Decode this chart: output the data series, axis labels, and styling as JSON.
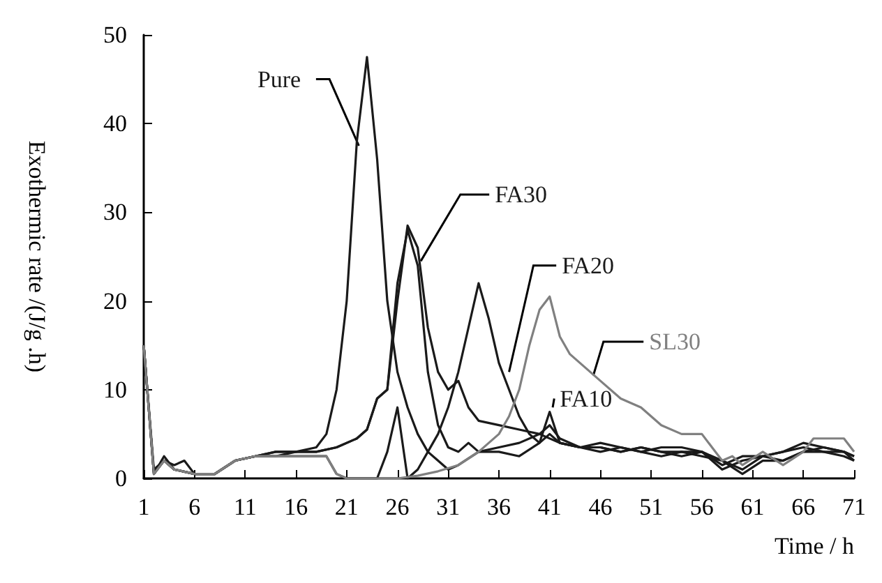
{
  "chart_data": {
    "type": "line",
    "xlabel": "Time / h",
    "ylabel": "Exothermic rate /(J/g .h)",
    "xlim": [
      1,
      71
    ],
    "xticks": [
      1,
      6,
      11,
      16,
      21,
      26,
      31,
      36,
      41,
      46,
      51,
      56,
      61,
      66,
      71
    ],
    "ylim": [
      0,
      50
    ],
    "yticks": [
      0,
      10,
      20,
      30,
      40,
      50
    ],
    "grid": false,
    "legend": false,
    "marker": "none",
    "line_style": "solid",
    "series": [
      {
        "name": "Pure",
        "color": "#1a1a1a",
        "x": [
          1,
          2,
          3,
          4,
          5,
          6,
          8,
          10,
          12,
          14,
          16,
          18,
          19,
          20,
          21,
          22,
          23,
          24,
          25,
          26,
          27,
          28,
          29,
          30,
          31,
          32,
          34,
          36,
          38,
          40,
          42,
          44,
          46,
          48,
          50,
          52,
          54,
          56,
          58,
          60,
          62,
          64,
          66,
          68,
          70,
          71
        ],
        "values": [
          15,
          1,
          2,
          1.5,
          2,
          0.5,
          0.5,
          2,
          2.5,
          2.5,
          3,
          3.5,
          5,
          10,
          20,
          38,
          47.5,
          36,
          20,
          12,
          8,
          5,
          3,
          2,
          1,
          1.5,
          3,
          3.5,
          4,
          5,
          4,
          3.5,
          3.5,
          3,
          3.5,
          3,
          3,
          3,
          1.5,
          2.5,
          2.5,
          3,
          3.5,
          3,
          2.5,
          2
        ]
      },
      {
        "name": "FA30",
        "color": "#1a1a1a",
        "x": [
          1,
          2,
          3,
          4,
          6,
          8,
          10,
          12,
          14,
          16,
          18,
          20,
          22,
          23,
          24,
          25,
          26,
          27,
          28,
          29,
          30,
          31,
          32,
          33,
          34,
          36,
          38,
          40,
          41,
          42,
          44,
          46,
          48,
          50,
          52,
          54,
          56,
          58,
          60,
          62,
          64,
          66,
          68,
          70,
          71
        ],
        "values": [
          15,
          0.5,
          2,
          1,
          0.5,
          0.5,
          2,
          2.5,
          3,
          3,
          3,
          3.5,
          4.5,
          5.5,
          9,
          10,
          20,
          28.5,
          26,
          17,
          12,
          10,
          11,
          8,
          6.5,
          6,
          5.5,
          5,
          6,
          4.5,
          3.5,
          4,
          3.5,
          3,
          3.5,
          3.5,
          3,
          2,
          0.5,
          2,
          2,
          3,
          3,
          3,
          2
        ]
      },
      {
        "name": "FA10",
        "color": "#1a1a1a",
        "x": [
          1,
          2,
          3,
          4,
          6,
          8,
          10,
          12,
          14,
          16,
          18,
          20,
          22,
          23,
          24,
          25,
          26,
          27,
          28,
          29,
          30,
          31,
          32,
          33,
          34,
          35,
          36,
          38,
          40,
          41,
          42,
          44,
          46,
          48,
          50,
          52,
          54,
          56,
          58,
          60,
          62,
          64,
          66,
          68,
          70,
          71
        ],
        "values": [
          15,
          0.5,
          2.5,
          1,
          0.5,
          0.5,
          2,
          2.5,
          3,
          3,
          3,
          3.5,
          4.5,
          5.5,
          9,
          10,
          22,
          28,
          24,
          12,
          6,
          3.5,
          3,
          4,
          3,
          3,
          3,
          2.5,
          4,
          7.5,
          4,
          3.5,
          3.5,
          3,
          3.5,
          3,
          2.5,
          3,
          1,
          2,
          2.5,
          3,
          4,
          3.5,
          3,
          2.5
        ]
      },
      {
        "name": "FA20",
        "color": "#1a1a1a",
        "x": [
          1,
          2,
          3,
          4,
          6,
          8,
          10,
          12,
          14,
          16,
          18,
          19,
          20,
          21,
          22,
          24,
          25,
          26,
          26.5,
          27,
          28,
          29,
          30,
          31,
          32,
          33,
          34,
          35,
          36,
          37,
          38,
          39,
          40,
          41,
          42,
          44,
          46,
          48,
          50,
          52,
          54,
          56,
          58,
          60,
          62,
          64,
          66,
          68,
          70,
          71
        ],
        "values": [
          15,
          0.5,
          2,
          1,
          0.5,
          0.5,
          2,
          2.5,
          2.5,
          2.5,
          2.5,
          2.5,
          0.5,
          0,
          0,
          0,
          3,
          8,
          4,
          0,
          1,
          3,
          5,
          8,
          12,
          17,
          22,
          18,
          13,
          10,
          7,
          5,
          4,
          5,
          4,
          3.5,
          3,
          3.5,
          3,
          2.5,
          3,
          2.5,
          2,
          1,
          2.5,
          2,
          3,
          3.5,
          3,
          2.5
        ]
      },
      {
        "name": "SL30",
        "color": "#808080",
        "x": [
          1,
          2,
          3,
          4,
          6,
          8,
          10,
          12,
          14,
          16,
          18,
          19,
          20,
          21,
          22,
          24,
          26,
          28,
          30,
          32,
          34,
          36,
          37,
          38,
          39,
          40,
          41,
          42,
          43,
          44,
          46,
          48,
          50,
          52,
          54,
          56,
          57,
          58,
          59,
          60,
          62,
          64,
          66,
          67,
          68,
          70,
          71
        ],
        "values": [
          15,
          0.5,
          2,
          1,
          0.5,
          0.5,
          2,
          2.5,
          2.5,
          2.5,
          2.5,
          2.5,
          0.5,
          0,
          0,
          0,
          0,
          0.3,
          0.8,
          1.5,
          3,
          5,
          7,
          10,
          15,
          19,
          20.5,
          16,
          14,
          13,
          11,
          9,
          8,
          6,
          5,
          5,
          3.5,
          2,
          2.5,
          1.5,
          3,
          1.5,
          3,
          4.5,
          4.5,
          4.5,
          3
        ]
      }
    ]
  }
}
